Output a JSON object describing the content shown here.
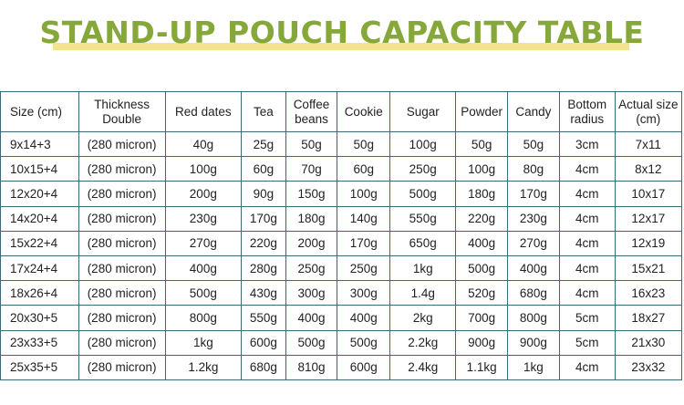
{
  "title": "STAND-UP POUCH CAPACITY TABLE",
  "table": {
    "headers": [
      "Size (cm)",
      "Thickness Double",
      "Red dates",
      "Tea",
      "Coffee beans",
      "Cookie",
      "Sugar",
      "Powder",
      "Candy",
      "Bottom radius",
      "Actual size (cm)"
    ],
    "rows": [
      [
        "9x14+3",
        "(280 micron)",
        "40g",
        "25g",
        "50g",
        "50g",
        "100g",
        "50g",
        "50g",
        "3cm",
        "7x11"
      ],
      [
        "10x15+4",
        "(280 micron)",
        "100g",
        "60g",
        "70g",
        "60g",
        "250g",
        "100g",
        "80g",
        "4cm",
        "8x12"
      ],
      [
        "12x20+4",
        "(280 micron)",
        "200g",
        "90g",
        "150g",
        "100g",
        "500g",
        "180g",
        "170g",
        "4cm",
        "10x17"
      ],
      [
        "14x20+4",
        "(280 micron)",
        "230g",
        "170g",
        "180g",
        "140g",
        "550g",
        "220g",
        "230g",
        "4cm",
        "12x17"
      ],
      [
        "15x22+4",
        "(280 micron)",
        "270g",
        "220g",
        "200g",
        "170g",
        "650g",
        "400g",
        "270g",
        "4cm",
        "12x19"
      ],
      [
        "17x24+4",
        "(280 micron)",
        "400g",
        "280g",
        "250g",
        "250g",
        "1kg",
        "500g",
        "400g",
        "4cm",
        "15x21"
      ],
      [
        "18x26+4",
        "(280 micron)",
        "500g",
        "430g",
        "300g",
        "300g",
        "1.4g",
        "520g",
        "680g",
        "4cm",
        "16x23"
      ],
      [
        "20x30+5",
        "(280 micron)",
        "800g",
        "550g",
        "400g",
        "400g",
        "2kg",
        "700g",
        "800g",
        "5cm",
        "18x27"
      ],
      [
        "23x33+5",
        "(280 micron)",
        "1kg",
        "600g",
        "500g",
        "500g",
        "2.2kg",
        "900g",
        "900g",
        "5cm",
        "21x30"
      ],
      [
        "25x35+5",
        "(280 micron)",
        "1.2kg",
        "680g",
        "810g",
        "600g",
        "2.4kg",
        "1.1kg",
        "1kg",
        "4cm",
        "23x32"
      ]
    ]
  }
}
